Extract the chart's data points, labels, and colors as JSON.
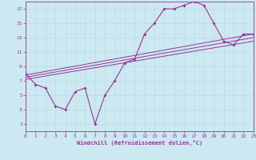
{
  "xlabel": "Windchill (Refroidissement éolien,°C)",
  "bg_color": "#cce8f0",
  "line_color": "#993399",
  "grid_color": "#b8dde8",
  "xlim": [
    0,
    23
  ],
  "ylim": [
    0,
    18
  ],
  "xticks": [
    0,
    1,
    2,
    3,
    4,
    5,
    6,
    7,
    8,
    9,
    10,
    11,
    12,
    13,
    14,
    15,
    16,
    17,
    18,
    19,
    20,
    21,
    22,
    23
  ],
  "yticks": [
    1,
    3,
    5,
    7,
    9,
    11,
    13,
    15,
    17
  ],
  "curve_x": [
    0,
    1,
    2,
    3,
    4,
    5,
    6,
    7,
    8,
    9,
    10,
    11,
    12,
    13,
    14,
    15,
    16,
    17,
    18,
    19,
    20,
    21,
    22,
    23
  ],
  "curve_y": [
    8,
    6.5,
    6,
    3.5,
    3,
    5.5,
    6,
    1,
    5,
    7,
    9.5,
    10,
    13.5,
    15,
    17,
    17,
    17.5,
    18,
    17.5,
    15,
    12.5,
    12,
    13.5,
    13.5
  ],
  "line1_x": [
    0,
    23
  ],
  "line1_y": [
    7.8,
    13.5
  ],
  "line2_x": [
    0,
    23
  ],
  "line2_y": [
    7.5,
    13.0
  ],
  "line3_x": [
    0,
    23
  ],
  "line3_y": [
    7.2,
    12.5
  ]
}
